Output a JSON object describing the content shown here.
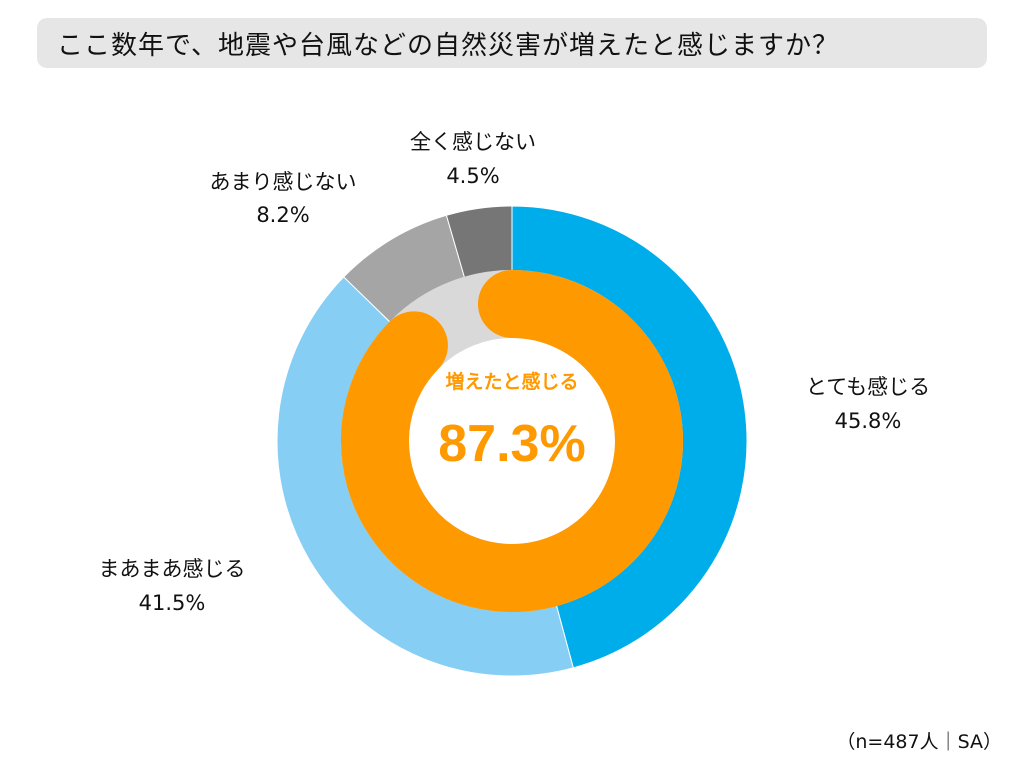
{
  "title": "ここ数年で、地震や台風などの自然災害が増えたと感じますか？",
  "footnote": "（n=487人｜SA）",
  "chart_data": {
    "type": "pie",
    "variant": "donut",
    "outer_ring": {
      "slices": [
        {
          "label": "とても感じる",
          "value": 45.8,
          "value_label": "45.8%",
          "color": "#00adeb"
        },
        {
          "label": "まあまあ感じる",
          "value": 41.5,
          "value_label": "41.5%",
          "color": "#87cef4"
        },
        {
          "label": "あまり感じない",
          "value": 8.2,
          "value_label": "8.2%",
          "color": "#a5a5a5"
        },
        {
          "label": "全く感じない",
          "value": 4.5,
          "value_label": "4.5%",
          "color": "#767676"
        }
      ]
    },
    "inner_ring": {
      "label": "増えたと感じる",
      "value": 87.3,
      "value_label": "87.3%",
      "color": "#ff9900",
      "track_color": "#d9d9d9"
    }
  }
}
